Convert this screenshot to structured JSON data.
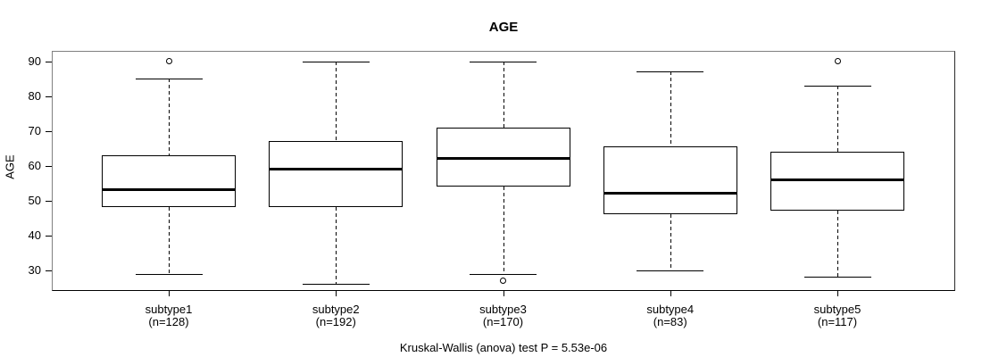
{
  "title": "AGE",
  "footer": "Kruskal-Wallis (anova) test P = 5.53e-06",
  "colors": {
    "line": "#000000",
    "text": "#000000",
    "background": "#ffffff",
    "frame_gray": "#808080"
  },
  "chart_data": {
    "type": "boxplot",
    "title": "AGE",
    "xlabel": "",
    "ylabel": "AGE",
    "ylim": [
      24,
      93
    ],
    "yticks": [
      30,
      40,
      50,
      60,
      70,
      80,
      90
    ],
    "grid": false,
    "legend": "none",
    "annotation": "Kruskal-Wallis (anova) test P = 5.53e-06",
    "groups": [
      {
        "label": "subtype1",
        "n_label": "(n=128)",
        "n": 128,
        "whisker_low": 29,
        "q1": 48,
        "median": 53,
        "q3": 63,
        "whisker_high": 85,
        "outliers": [
          90
        ]
      },
      {
        "label": "subtype2",
        "n_label": "(n=192)",
        "n": 192,
        "whisker_low": 26,
        "q1": 48,
        "median": 59,
        "q3": 67,
        "whisker_high": 90,
        "outliers": []
      },
      {
        "label": "subtype3",
        "n_label": "(n=170)",
        "n": 170,
        "whisker_low": 29,
        "q1": 54,
        "median": 62,
        "q3": 71,
        "whisker_high": 90,
        "outliers": [
          27
        ]
      },
      {
        "label": "subtype4",
        "n_label": "(n=83)",
        "n": 83,
        "whisker_low": 30,
        "q1": 46,
        "median": 52,
        "q3": 65.5,
        "whisker_high": 87,
        "outliers": []
      },
      {
        "label": "subtype5",
        "n_label": "(n=117)",
        "n": 117,
        "whisker_low": 28,
        "q1": 47,
        "median": 56,
        "q3": 64,
        "whisker_high": 83,
        "outliers": [
          90
        ]
      }
    ]
  }
}
